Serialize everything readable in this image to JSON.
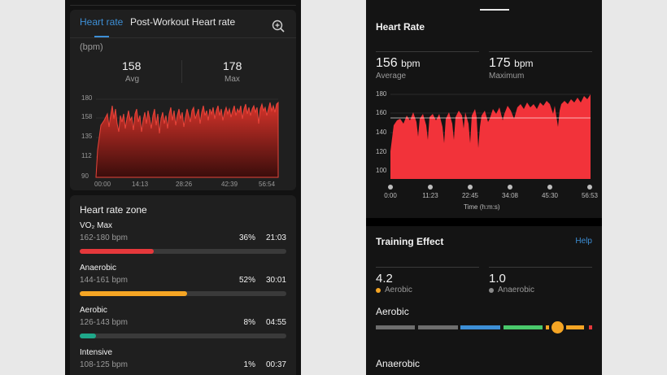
{
  "left": {
    "tabs": {
      "active": "Heart rate",
      "inactive": "Post-Workout Heart rate"
    },
    "unit": "(bpm)",
    "stats": {
      "avg_value": "158",
      "avg_label": "Avg",
      "max_value": "178",
      "max_label": "Max"
    },
    "chart": {
      "y_ticks": [
        "180",
        "158",
        "135",
        "112",
        "90"
      ],
      "x_ticks": [
        "00:00",
        "14:13",
        "28:26",
        "42:39",
        "56:54"
      ]
    },
    "zones": {
      "title": "Heart rate zone",
      "items": [
        {
          "name": "VO₂ Max",
          "range": "162-180 bpm",
          "percent": "36%",
          "time": "21:03",
          "fill": 0.36,
          "color": "#e5383b"
        },
        {
          "name": "Anaerobic",
          "range": "144-161 bpm",
          "percent": "52%",
          "time": "30:01",
          "fill": 0.52,
          "color": "#f5a524"
        },
        {
          "name": "Aerobic",
          "range": "126-143 bpm",
          "percent": "8%",
          "time": "04:55",
          "fill": 0.08,
          "color": "#1fa88a"
        },
        {
          "name": "Intensive",
          "range": "108-125 bpm",
          "percent": "1%",
          "time": "00:37",
          "fill": 0.01,
          "color": "#3d8fd6"
        }
      ]
    }
  },
  "right": {
    "title": "Heart Rate",
    "stats": {
      "avg_value": "156",
      "avg_unit": "bpm",
      "avg_label": "Average",
      "max_value": "175",
      "max_unit": "bpm",
      "max_label": "Maximum"
    },
    "chart": {
      "y_ticks": [
        "180",
        "160",
        "140",
        "120",
        "100"
      ],
      "x_ticks": [
        "0:00",
        "11:23",
        "22:45",
        "34:08",
        "45:30",
        "56:53"
      ],
      "x_title": "Time (h:m:s)"
    },
    "training": {
      "title": "Training Effect",
      "help": "Help",
      "aerobic_value": "4.2",
      "aerobic_label": "Aerobic",
      "anaerobic_value": "1.0",
      "anaerobic_label": "Anaerobic",
      "aerobic_heading": "Aerobic",
      "anaerobic_heading": "Anaerobic",
      "aerobic_dot_color": "#f5a524",
      "anaerobic_dot_color": "#8a8a8a"
    }
  }
}
